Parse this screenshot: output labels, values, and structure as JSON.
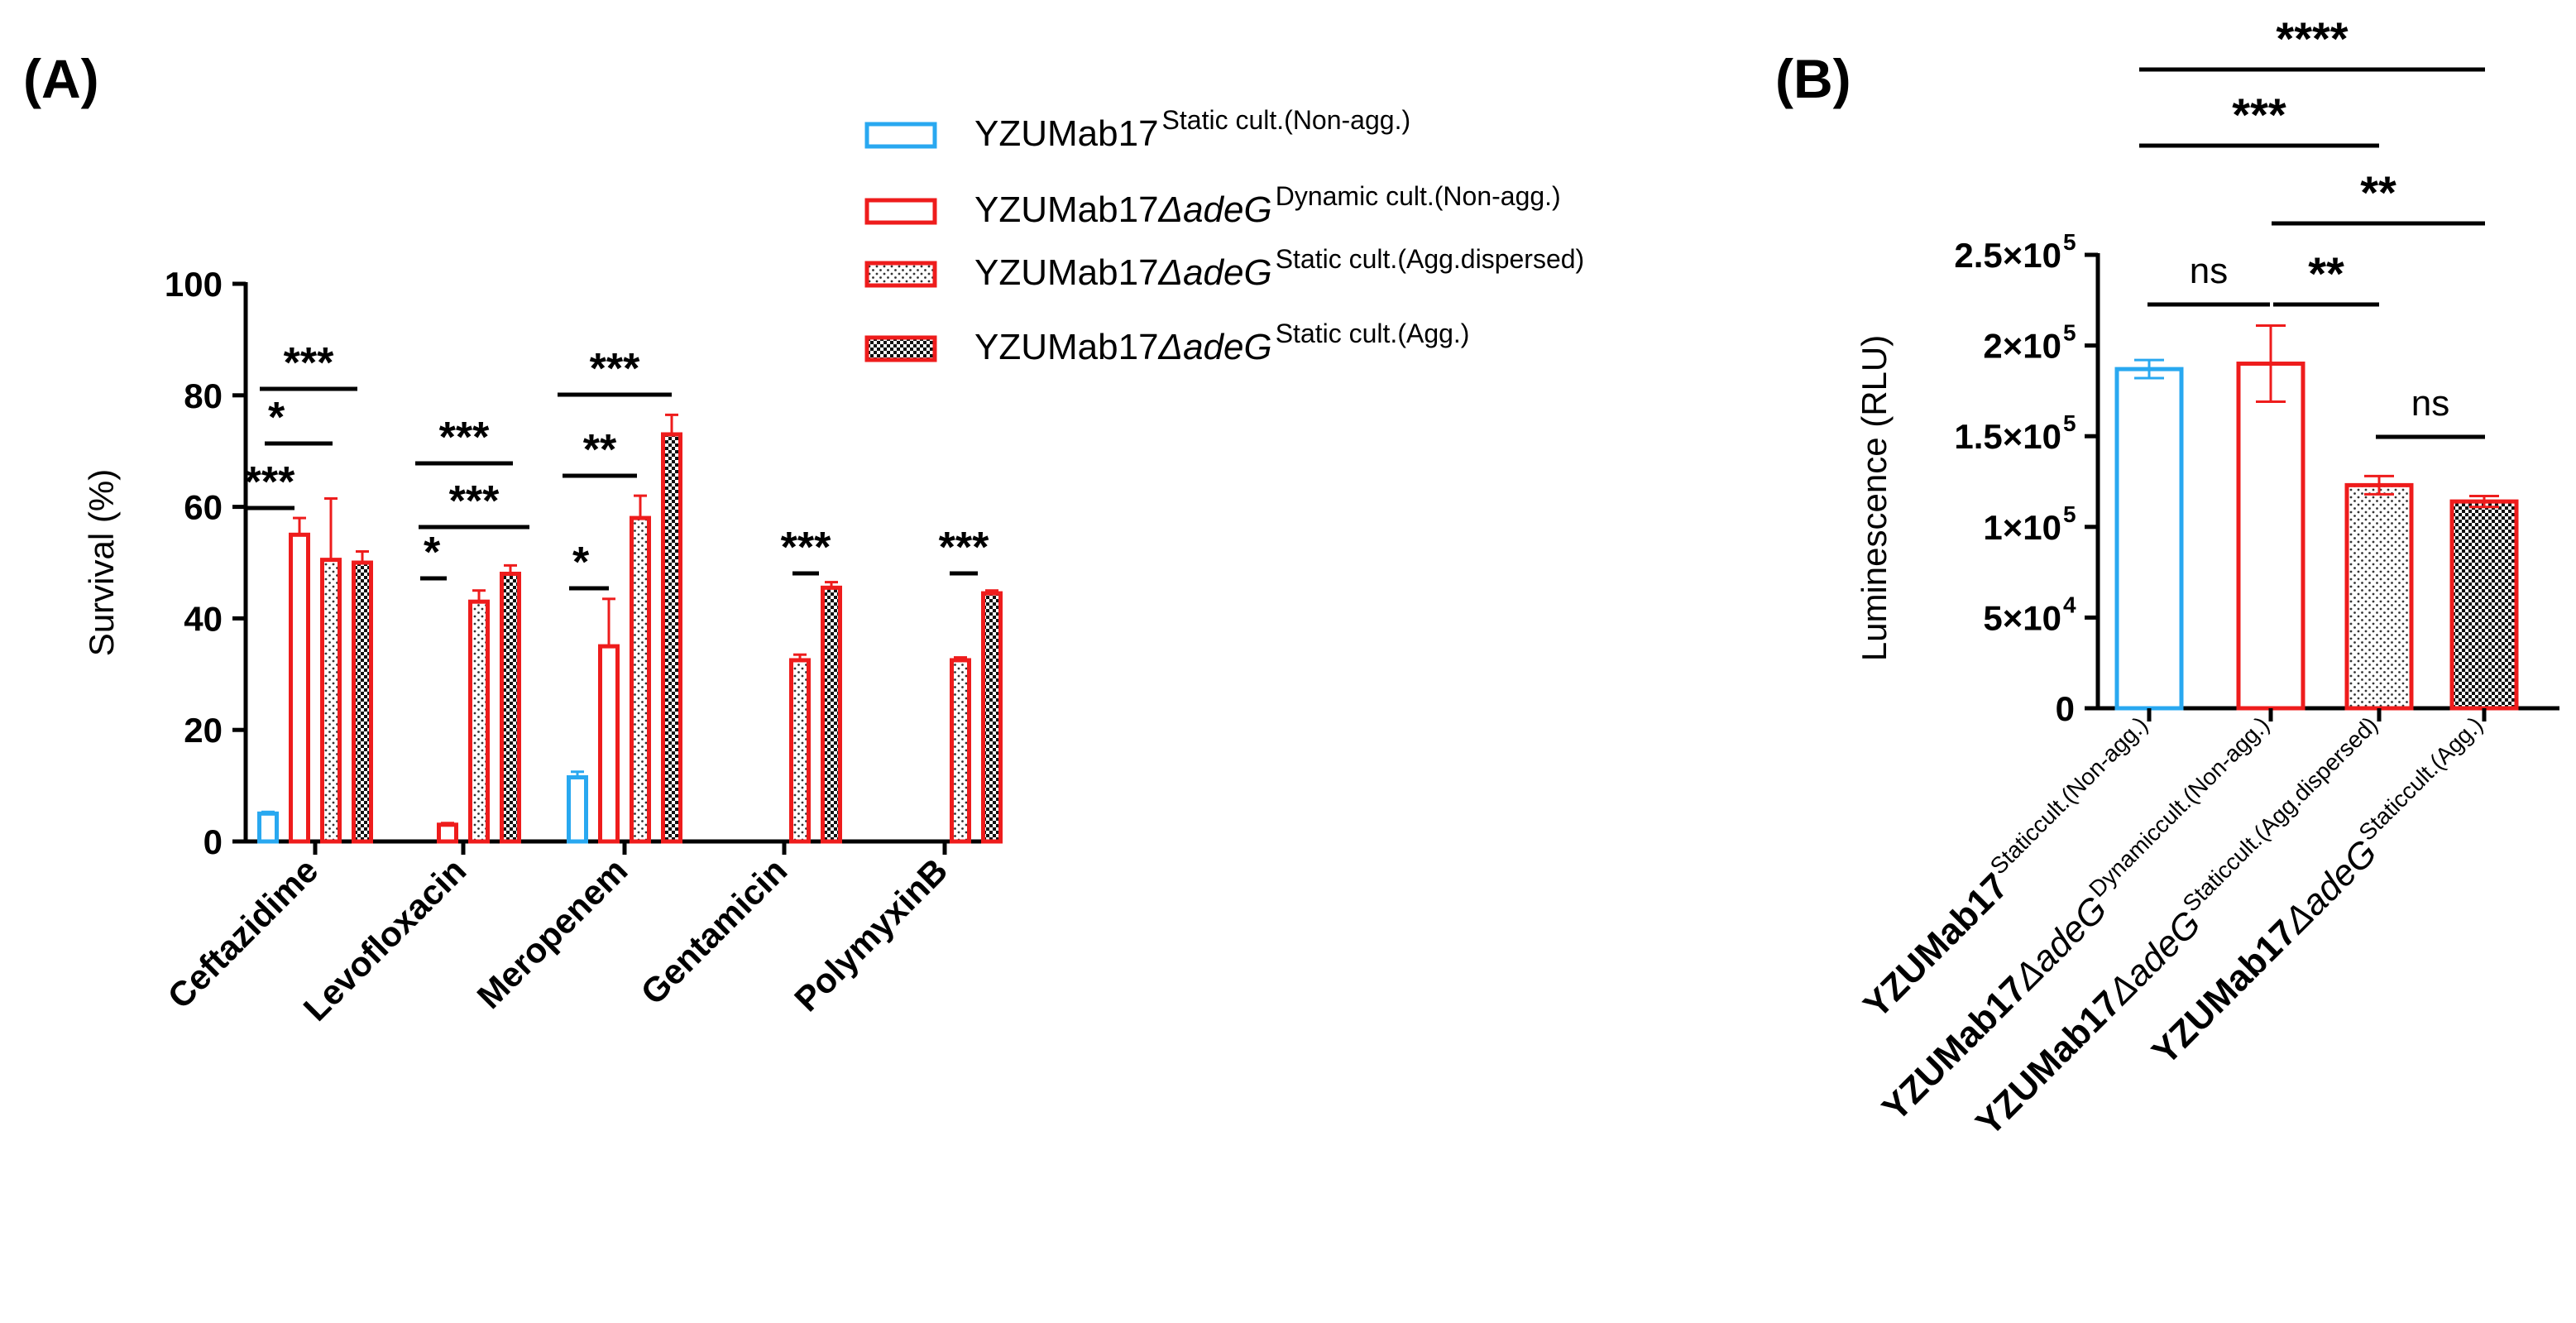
{
  "chart_data": [
    {
      "panel": "(A)",
      "type": "bar",
      "ylabel": "Survival (%)",
      "xlabel": "",
      "ylim": [
        0,
        100
      ],
      "yticks": [
        "0",
        "20",
        "40",
        "60",
        "80",
        "100"
      ],
      "categories": [
        "Ceftazidime",
        "Levofloxacin",
        "Meropenem",
        "Gentamicin",
        "PolymyxinB"
      ],
      "series": [
        {
          "name": "YZUMab17",
          "sup": "Static cult.(Non-agg.)",
          "fill": "none",
          "color": "#29a8f0",
          "values": [
            5,
            null,
            11.5,
            null,
            null
          ],
          "errors": [
            0.3,
            null,
            1.0,
            null,
            null
          ]
        },
        {
          "name": "YZUMab17",
          "italic": "ΔadeG",
          "sup": "Dynamic cult.(Non-agg.)",
          "fill": "none",
          "color": "#ee1c1c",
          "values": [
            55,
            3,
            35,
            null,
            null
          ],
          "errors": [
            3,
            0.3,
            8.5,
            null,
            null
          ]
        },
        {
          "name": "YZUMab17",
          "italic": "ΔadeG",
          "sup": "Static cult.(Agg.dispersed)",
          "fill": "dots",
          "color": "#ee1c1c",
          "values": [
            50.5,
            43,
            58,
            32.5,
            32.5
          ],
          "errors": [
            11,
            2,
            4,
            1,
            0.5
          ]
        },
        {
          "name": "YZUMab17",
          "italic": "ΔadeG",
          "sup": "Static cult.(Agg.)",
          "fill": "checker",
          "color": "#ee1c1c",
          "values": [
            50,
            48,
            73,
            45.5,
            44.5
          ],
          "errors": [
            2,
            1.5,
            3.5,
            1,
            0.5
          ]
        }
      ],
      "significance": [
        {
          "cat": 0,
          "from": 0,
          "to": 1,
          "label": "***"
        },
        {
          "cat": 0,
          "from": 1,
          "to": 2,
          "label": "*"
        },
        {
          "cat": 0,
          "from": 1,
          "to": 3,
          "label": "***"
        },
        {
          "cat": 1,
          "from": 0,
          "to": 1,
          "label": "*"
        },
        {
          "cat": 1,
          "from": 0,
          "to": 2,
          "label": "***"
        },
        {
          "cat": 1,
          "from": 0,
          "to": 3,
          "label": "***"
        },
        {
          "cat": 2,
          "from": 0,
          "to": 1,
          "label": "*"
        },
        {
          "cat": 2,
          "from": 0,
          "to": 2,
          "label": "**"
        },
        {
          "cat": 2,
          "from": 0,
          "to": 3,
          "label": "***"
        },
        {
          "cat": 3,
          "from": 2,
          "to": 3,
          "label": "***"
        },
        {
          "cat": 4,
          "from": 2,
          "to": 3,
          "label": "***"
        }
      ]
    },
    {
      "panel": "(B)",
      "type": "bar",
      "ylabel": "Luminescence (RLU)",
      "xlabel": "",
      "ylim": [
        0,
        250000
      ],
      "yticks": [
        {
          "value": 0,
          "label": "0"
        },
        {
          "value": 50000,
          "label": "5×10",
          "exp": "4"
        },
        {
          "value": 100000,
          "label": "1×10",
          "exp": "5"
        },
        {
          "value": 150000,
          "label": "1.5×10",
          "exp": "5"
        },
        {
          "value": 200000,
          "label": "2×10",
          "exp": "5"
        },
        {
          "value": 250000,
          "label": "2.5×10",
          "exp": "5"
        }
      ],
      "categories": [
        {
          "name": "YZUMab17",
          "italic": "",
          "sup": "Staticcult.(Non-agg.)"
        },
        {
          "name": "YZUMab17",
          "italic": "ΔadeG",
          "sup": "Dynamiccult.(Non-agg.)"
        },
        {
          "name": "YZUMab17",
          "italic": "ΔadeG",
          "sup": "Staticcult.(Agg.dispersed)"
        },
        {
          "name": "YZUMab17",
          "italic": "ΔadeG",
          "sup": "Staticcult.(Agg.)"
        }
      ],
      "values": [
        187000,
        190000,
        123000,
        114000
      ],
      "errors": [
        5000,
        21000,
        5000,
        3000
      ],
      "colors": [
        "#29a8f0",
        "#ee1c1c",
        "#ee1c1c",
        "#ee1c1c"
      ],
      "fills": [
        "none",
        "none",
        "dots",
        "checker"
      ],
      "significance": [
        {
          "from": 0,
          "to": 1,
          "label": "ns"
        },
        {
          "from": 1,
          "to": 2,
          "label": "**"
        },
        {
          "from": 2,
          "to": 3,
          "label": "ns"
        },
        {
          "from": 1,
          "to": 3,
          "label": "**"
        },
        {
          "from": 0,
          "to": 2,
          "label": "***"
        },
        {
          "from": 0,
          "to": 3,
          "label": "****"
        }
      ]
    }
  ]
}
